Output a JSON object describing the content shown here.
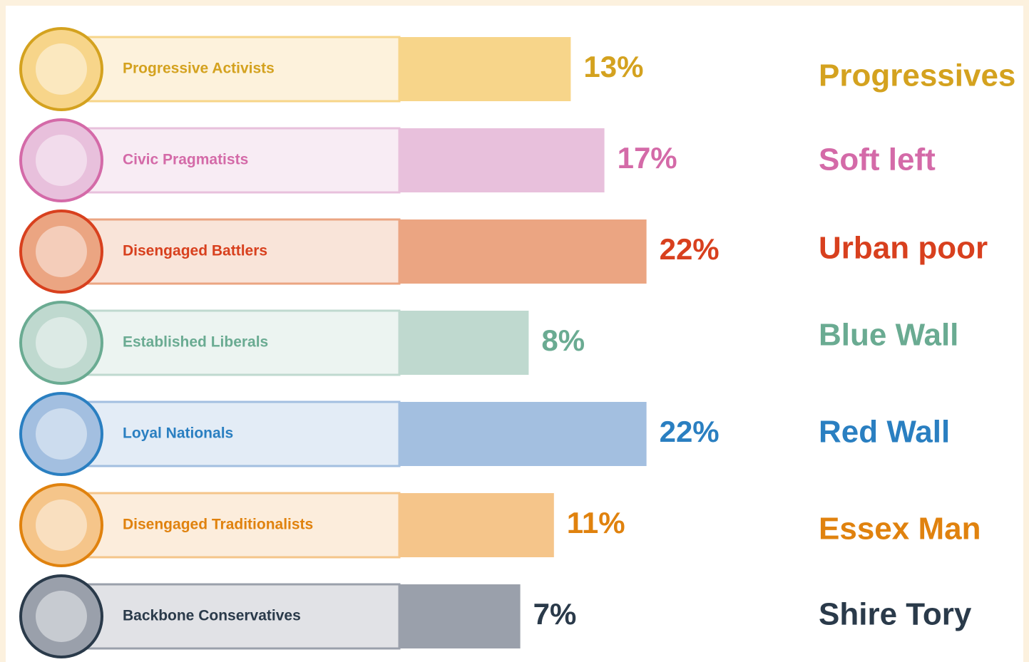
{
  "chart_data": {
    "type": "bar",
    "categories": [
      "Progressive Activists",
      "Civic Pragmatists",
      "Disengaged Battlers",
      "Established Liberals",
      "Loyal Nationals",
      "Disengaged Traditionalists",
      "Backbone Conservatives"
    ],
    "values": [
      13,
      17,
      22,
      8,
      22,
      11,
      7
    ],
    "value_labels": [
      "13%",
      "17%",
      "22%",
      "8%",
      "22%",
      "11%",
      "7%"
    ],
    "group_labels": [
      "Progressives",
      "Soft left",
      "Urban poor",
      "Blue Wall",
      "Red Wall",
      "Essex Man",
      "Shire Tory"
    ],
    "colors": [
      "#f7d58a",
      "#e8c0dc",
      "#eba582",
      "#bfd9cf",
      "#a3bfe0",
      "#f5c58a",
      "#9aa0ab"
    ],
    "text_colors": [
      "#d4a21f",
      "#d46aa8",
      "#d8401e",
      "#6aab92",
      "#2a7fc1",
      "#e0820e",
      "#2a3a4a"
    ]
  }
}
